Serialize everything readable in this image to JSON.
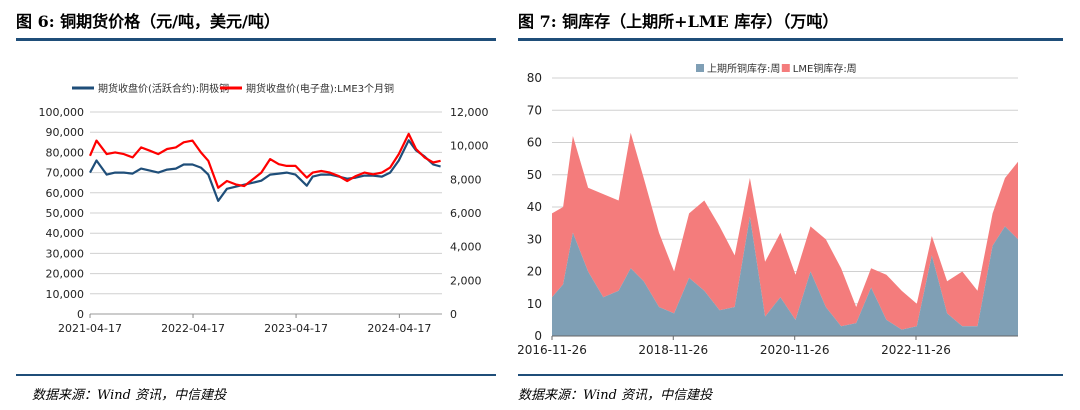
{
  "figures": [
    {
      "title": "图 6: 铜期货价格（元/吨，美元/吨）",
      "source": "数据来源：Wind 资讯，中信建投"
    },
    {
      "title": "图 7: 铜库存（上期所+LME 库存）（万吨）",
      "source": "数据来源：Wind 资讯，中信建投"
    }
  ],
  "chart_data": [
    {
      "type": "line",
      "title": "",
      "x_ticks": [
        "2021-04-17",
        "2022-04-17",
        "2023-04-17",
        "2024-04-17"
      ],
      "y_left_ticks": [
        "0",
        "10,000",
        "20,000",
        "30,000",
        "40,000",
        "50,000",
        "60,000",
        "70,000",
        "80,000",
        "90,000",
        "100,000"
      ],
      "y_right_ticks": [
        "0",
        "2,000",
        "4,000",
        "6,000",
        "8,000",
        "10,000",
        "12,000"
      ],
      "ylim_left": [
        0,
        100000
      ],
      "ylim_right": [
        0,
        12000
      ],
      "grid": true,
      "legend_position": "top",
      "series": [
        {
          "name": "期货收盘价(活跃合约):阴极铜",
          "axis": "left",
          "color": "#1f4e79",
          "x": [
            "2021-04-17",
            "2021-05-10",
            "2021-06-15",
            "2021-07-15",
            "2021-08-15",
            "2021-09-15",
            "2021-10-15",
            "2021-11-15",
            "2021-12-15",
            "2022-01-15",
            "2022-02-15",
            "2022-03-15",
            "2022-04-15",
            "2022-05-15",
            "2022-06-10",
            "2022-07-15",
            "2022-08-15",
            "2022-09-15",
            "2022-10-15",
            "2022-11-15",
            "2022-12-15",
            "2023-01-15",
            "2023-02-15",
            "2023-03-15",
            "2023-04-15",
            "2023-05-25",
            "2023-06-15",
            "2023-07-15",
            "2023-08-15",
            "2023-09-15",
            "2023-10-15",
            "2023-11-15",
            "2023-12-15",
            "2024-01-15",
            "2024-02-15",
            "2024-03-15",
            "2024-04-15",
            "2024-05-20",
            "2024-06-15",
            "2024-07-15",
            "2024-08-15",
            "2024-09-10"
          ],
          "values": [
            70000,
            76000,
            69000,
            70000,
            70000,
            69500,
            72000,
            71000,
            70000,
            71500,
            72000,
            74000,
            74000,
            72500,
            69000,
            56000,
            62000,
            63000,
            64000,
            65000,
            66000,
            69000,
            69500,
            70000,
            69000,
            63500,
            68000,
            69000,
            69000,
            68000,
            67000,
            67500,
            68500,
            68500,
            68000,
            70000,
            76000,
            86000,
            81000,
            78000,
            74000,
            73000
          ]
        },
        {
          "name": "期货收盘价(电子盘):LME3个月铜",
          "axis": "right",
          "color": "#ff0000",
          "x": [
            "2021-04-17",
            "2021-05-10",
            "2021-06-15",
            "2021-07-15",
            "2021-08-15",
            "2021-09-15",
            "2021-10-15",
            "2021-11-15",
            "2021-12-15",
            "2022-01-15",
            "2022-02-15",
            "2022-03-15",
            "2022-04-15",
            "2022-05-15",
            "2022-06-10",
            "2022-07-15",
            "2022-08-15",
            "2022-09-15",
            "2022-10-15",
            "2022-11-15",
            "2022-12-15",
            "2023-01-15",
            "2023-02-15",
            "2023-03-15",
            "2023-04-15",
            "2023-05-25",
            "2023-06-15",
            "2023-07-15",
            "2023-08-15",
            "2023-09-15",
            "2023-10-15",
            "2023-11-15",
            "2023-12-15",
            "2024-01-15",
            "2024-02-15",
            "2024-03-15",
            "2024-04-15",
            "2024-05-20",
            "2024-06-15",
            "2024-07-15",
            "2024-08-15",
            "2024-09-10"
          ],
          "values": [
            9400,
            10300,
            9500,
            9600,
            9500,
            9300,
            9900,
            9700,
            9500,
            9800,
            9900,
            10200,
            10300,
            9600,
            9100,
            7500,
            7900,
            7700,
            7600,
            8000,
            8400,
            9200,
            8900,
            8800,
            8800,
            8100,
            8400,
            8500,
            8400,
            8200,
            7900,
            8200,
            8400,
            8300,
            8400,
            8700,
            9500,
            10700,
            9800,
            9300,
            9000,
            9100
          ]
        }
      ]
    },
    {
      "type": "area",
      "title": "",
      "stacked": true,
      "x_ticks": [
        "2016-11-26",
        "2018-11-26",
        "2020-11-26",
        "2022-11-26"
      ],
      "y_ticks": [
        "0",
        "10",
        "20",
        "30",
        "40",
        "50",
        "60",
        "70",
        "80"
      ],
      "ylim": [
        0,
        80
      ],
      "grid": true,
      "legend_position": "top",
      "series": [
        {
          "name": "上期所铜库存:周",
          "color": "#7f9fb5",
          "x": [
            "2016-11-26",
            "2017-02-01",
            "2017-04-01",
            "2017-07-01",
            "2017-10-01",
            "2018-01-01",
            "2018-03-15",
            "2018-06-01",
            "2018-09-01",
            "2018-12-01",
            "2019-03-01",
            "2019-06-01",
            "2019-09-01",
            "2019-12-01",
            "2020-03-01",
            "2020-06-01",
            "2020-09-01",
            "2020-12-01",
            "2021-03-01",
            "2021-06-01",
            "2021-09-01",
            "2021-12-01",
            "2022-03-01",
            "2022-06-01",
            "2022-09-01",
            "2022-12-01",
            "2023-03-01",
            "2023-06-01",
            "2023-09-01",
            "2023-12-01",
            "2024-03-01",
            "2024-05-15",
            "2024-08-01"
          ],
          "values": [
            12,
            16,
            32,
            20,
            12,
            14,
            21,
            17,
            9,
            7,
            18,
            14,
            8,
            9,
            37,
            6,
            12,
            5,
            20,
            9,
            3,
            4,
            15,
            5,
            2,
            3,
            25,
            7,
            3,
            3,
            28,
            34,
            30
          ]
        },
        {
          "name": "LME铜库存:周",
          "color": "#f47c7c",
          "x": [
            "2016-11-26",
            "2017-02-01",
            "2017-04-01",
            "2017-07-01",
            "2017-10-01",
            "2018-01-01",
            "2018-03-15",
            "2018-06-01",
            "2018-09-01",
            "2018-12-01",
            "2019-03-01",
            "2019-06-01",
            "2019-09-01",
            "2019-12-01",
            "2020-03-01",
            "2020-06-01",
            "2020-09-01",
            "2020-12-01",
            "2021-03-01",
            "2021-06-01",
            "2021-09-01",
            "2021-12-01",
            "2022-03-01",
            "2022-06-01",
            "2022-09-01",
            "2022-12-01",
            "2023-03-01",
            "2023-06-01",
            "2023-09-01",
            "2023-12-01",
            "2024-03-01",
            "2024-05-15",
            "2024-08-01"
          ],
          "values": [
            26,
            24,
            30,
            26,
            32,
            28,
            42,
            32,
            23,
            13,
            20,
            28,
            26,
            16,
            12,
            17,
            20,
            14,
            14,
            21,
            18,
            5,
            6,
            14,
            12,
            7,
            6,
            10,
            17,
            11,
            10,
            15,
            24
          ]
        }
      ]
    }
  ]
}
